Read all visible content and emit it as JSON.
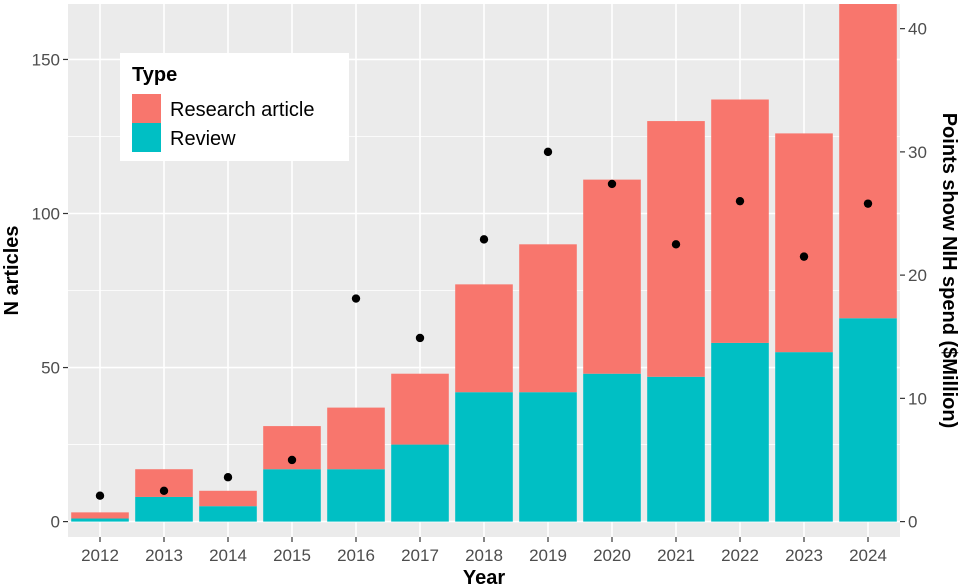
{
  "chart_data": {
    "type": "bar",
    "stacked": true,
    "categories": [
      "2012",
      "2013",
      "2014",
      "2015",
      "2016",
      "2017",
      "2018",
      "2019",
      "2020",
      "2021",
      "2022",
      "2023",
      "2024"
    ],
    "series": [
      {
        "name": "Review",
        "color": "#00BFC4",
        "values": [
          1,
          8,
          5,
          17,
          17,
          25,
          42,
          42,
          48,
          47,
          58,
          55,
          66
        ]
      },
      {
        "name": "Research article",
        "color": "#F8766D",
        "values": [
          2,
          9,
          5,
          14,
          20,
          23,
          35,
          48,
          63,
          83,
          79,
          71,
          102
        ]
      }
    ],
    "secondary_series": {
      "name": "NIH spend",
      "type": "scatter",
      "color": "#000000",
      "values": [
        2.1,
        2.5,
        3.6,
        5.0,
        18.1,
        14.9,
        22.9,
        30.0,
        27.4,
        22.5,
        26.0,
        21.5,
        25.8
      ]
    },
    "xlabel": "Year",
    "ylabel": "N articles",
    "y2label": "Points show NIH spend ($Million)",
    "ylim": [
      -5,
      168
    ],
    "y2lim": [
      -1.25,
      42
    ],
    "yticks": [
      0,
      50,
      100,
      150
    ],
    "y2ticks": [
      0,
      10,
      20,
      30,
      40
    ],
    "legend": {
      "title": "Type",
      "items": [
        "Research article",
        "Review"
      ],
      "position": "top-left"
    },
    "grid": true
  }
}
